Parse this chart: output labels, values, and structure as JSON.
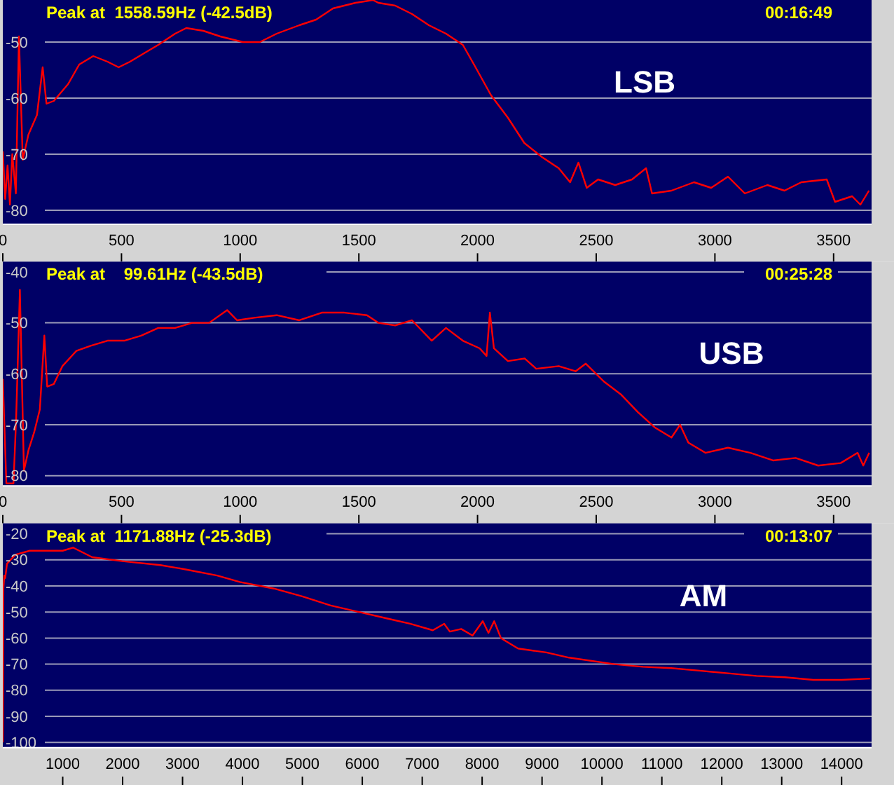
{
  "chart_data": [
    {
      "type": "line",
      "title": "Peak at  1558.59Hz (-42.5dB)",
      "subtitle": "00:16:49",
      "annotations": [
        "LSB"
      ],
      "xlim": [
        0,
        3660
      ],
      "xticks": [
        0,
        500,
        1000,
        1500,
        2000,
        2500,
        3000,
        3500
      ],
      "ylim": [
        -82.5,
        -42.5
      ],
      "yticks": [
        -50,
        -60,
        -70,
        -80
      ],
      "grid": "y",
      "series": [
        {
          "color": "#ff0000",
          "x": [
            0,
            10,
            20,
            30,
            40,
            55,
            68,
            84,
            108,
            144,
            168,
            184,
            215,
            275,
            322,
            381,
            441,
            488,
            536,
            595,
            655,
            726,
            773,
            845,
            916,
            1011,
            1083,
            1154,
            1249,
            1320,
            1391,
            1486,
            1559,
            1582,
            1653,
            1724,
            1795,
            1867,
            1938,
            1985,
            2057,
            2128,
            2197,
            2271,
            2342,
            2390,
            2425,
            2460,
            2508,
            2580,
            2651,
            2710,
            2735,
            2817,
            2912,
            2984,
            3055,
            3126,
            3221,
            3293,
            3364,
            3471,
            3506,
            3578,
            3613,
            3649
          ],
          "values": [
            -69.5,
            -78,
            -72,
            -79,
            -70,
            -77,
            -49,
            -71,
            -66.5,
            -63,
            -54.5,
            -61,
            -60.5,
            -57.5,
            -54,
            -52.5,
            -53.5,
            -54.5,
            -53.5,
            -52,
            -50.5,
            -48.5,
            -47.5,
            -48,
            -49,
            -50,
            -50,
            -48.5,
            -47,
            -46,
            -44,
            -43,
            -42.5,
            -43,
            -43.5,
            -45,
            -47,
            -48.5,
            -50.5,
            -54,
            -59.5,
            -63.5,
            -68,
            -70.5,
            -72.5,
            -75,
            -71.5,
            -76,
            -74.5,
            -75.5,
            -74.5,
            -72.5,
            -77,
            -76.5,
            -75,
            -76,
            -74,
            -77,
            -75.5,
            -76.5,
            -75,
            -74.5,
            -78.5,
            -77.5,
            -79,
            -76.5
          ]
        }
      ]
    },
    {
      "type": "line",
      "title": "Peak at    99.61Hz (-43.5dB)",
      "subtitle": "00:25:28",
      "annotations": [
        "USB"
      ],
      "xlim": [
        0,
        3660
      ],
      "xticks": [
        0,
        500,
        1000,
        1500,
        2000,
        2500,
        3000,
        3500
      ],
      "ylim": [
        -82,
        -38
      ],
      "yticks": [
        -40,
        -50,
        -60,
        -70,
        -80
      ],
      "grid": "y",
      "series": [
        {
          "color": "#ff0000",
          "x": [
            0,
            15,
            45,
            56,
            72,
            89,
            108,
            132,
            156,
            175,
            187,
            215,
            251,
            310,
            370,
            441,
            512,
            583,
            655,
            726,
            797,
            869,
            945,
            987,
            1059,
            1154,
            1249,
            1344,
            1439,
            1534,
            1582,
            1653,
            1724,
            1807,
            1867,
            1938,
            2009,
            2038,
            2052,
            2069,
            2128,
            2199,
            2247,
            2342,
            2413,
            2456,
            2532,
            2603,
            2675,
            2746,
            2817,
            2853,
            2888,
            2960,
            3055,
            3150,
            3245,
            3340,
            3435,
            3530,
            3601,
            3625,
            3650
          ],
          "values": [
            -61,
            -81.5,
            -81.5,
            -69,
            -43.5,
            -79,
            -75,
            -71.5,
            -67,
            -52.5,
            -62.5,
            -62,
            -58.5,
            -55.5,
            -54.5,
            -53.5,
            -53.5,
            -52.5,
            -51,
            -51,
            -50,
            -50,
            -47.5,
            -49.5,
            -49,
            -48.5,
            -49.5,
            -48,
            -48,
            -48.5,
            -50,
            -50.5,
            -49.5,
            -53.5,
            -51,
            -53.5,
            -55,
            -56.5,
            -48,
            -55,
            -57.5,
            -57,
            -59,
            -58.5,
            -59.5,
            -58,
            -61.5,
            -64,
            -67.5,
            -70.5,
            -72.5,
            -70,
            -73.5,
            -75.5,
            -74.5,
            -75.5,
            -77,
            -76.5,
            -78,
            -77.5,
            -75.5,
            -78,
            -75.5
          ]
        }
      ]
    },
    {
      "type": "line",
      "title": "Peak at  1171.88Hz (-25.3dB)",
      "subtitle": "00:13:07",
      "annotations": [
        "AM"
      ],
      "xlim": [
        0,
        14500
      ],
      "xticks": [
        1000,
        2000,
        3000,
        4000,
        5000,
        6000,
        7000,
        8000,
        9000,
        10000,
        11000,
        12000,
        13000,
        14000
      ],
      "ylim": [
        -102,
        -16
      ],
      "yticks": [
        -20,
        -30,
        -40,
        -50,
        -60,
        -70,
        -80,
        -90,
        -100
      ],
      "grid": "y",
      "series": [
        {
          "color": "#ff0000",
          "x": [
            0,
            10,
            25,
            40,
            70,
            210,
            450,
            730,
            1000,
            1172,
            1492,
            1995,
            2630,
            3008,
            3577,
            3956,
            4524,
            4998,
            5472,
            5946,
            6419,
            6798,
            7177,
            7367,
            7461,
            7651,
            7840,
            8011,
            8106,
            8201,
            8314,
            8599,
            9072,
            9451,
            10209,
            10683,
            11157,
            11630,
            12104,
            12578,
            13052,
            13526,
            14000,
            14474
          ],
          "values": [
            -100,
            -41,
            -36,
            -37,
            -31.5,
            -28,
            -26.5,
            -26.5,
            -26.5,
            -25.3,
            -29,
            -30.5,
            -32,
            -33.5,
            -36,
            -38.5,
            -41,
            -44,
            -47.5,
            -50,
            -52.5,
            -54.5,
            -57,
            -54.5,
            -57.5,
            -56.5,
            -59,
            -53.5,
            -58,
            -53.5,
            -60,
            -64,
            -65.5,
            -67.5,
            -70,
            -71,
            -71.5,
            -72.5,
            -73.5,
            -74.5,
            -75,
            -76,
            -76,
            -75.5
          ]
        }
      ]
    }
  ]
}
